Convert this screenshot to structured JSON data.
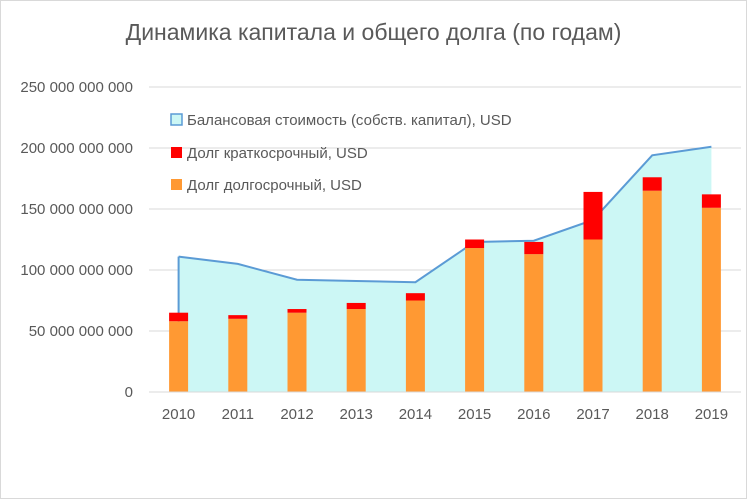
{
  "chart_data": {
    "type": "bar",
    "title": "Динамика капитала и общего долга (по годам)",
    "categories": [
      "2010",
      "2011",
      "2012",
      "2013",
      "2014",
      "2015",
      "2016",
      "2017",
      "2018",
      "2019"
    ],
    "ylim": [
      0,
      250000000000
    ],
    "yticks": [
      0,
      50000000000,
      100000000000,
      150000000000,
      200000000000,
      250000000000
    ],
    "ytick_labels": [
      "0",
      "50 000 000 000",
      "100 000 000 000",
      "150 000 000 000",
      "200 000 000 000",
      "250 000 000 000"
    ],
    "grid": true,
    "legend_position": "top-left",
    "series": [
      {
        "name": "Балансовая стоимость (собств. капитал), USD",
        "kind": "area",
        "fill": "#ccf7f5",
        "stroke": "#5b9bd5",
        "values": [
          111000000000,
          105000000000,
          92000000000,
          91000000000,
          90000000000,
          123000000000,
          124000000000,
          141000000000,
          194000000000,
          201000000000
        ]
      },
      {
        "name": "Долг краткосрочный, USD",
        "kind": "bar-stacked",
        "color": "#ff0000",
        "values": [
          7000000000,
          3000000000,
          3000000000,
          5000000000,
          6000000000,
          7000000000,
          10000000000,
          39000000000,
          11000000000,
          11000000000
        ]
      },
      {
        "name": "Долг долгосрочный, USD",
        "kind": "bar-stacked",
        "color": "#ff9933",
        "values": [
          58000000000,
          60000000000,
          65000000000,
          68000000000,
          75000000000,
          118000000000,
          113000000000,
          125000000000,
          165000000000,
          151000000000
        ]
      }
    ]
  }
}
